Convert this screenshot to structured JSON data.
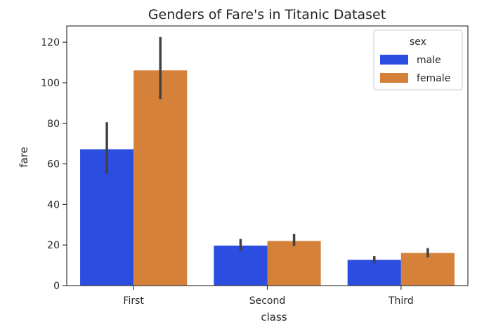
{
  "chart_data": {
    "type": "bar",
    "title": "Genders of Fare's in Titanic Dataset",
    "xlabel": "class",
    "ylabel": "fare",
    "categories": [
      "First",
      "Second",
      "Third"
    ],
    "yticks": [
      0,
      20,
      40,
      60,
      80,
      100,
      120
    ],
    "ylim": [
      0,
      128
    ],
    "grid": false,
    "legend": {
      "title": "sex",
      "placement": "top-right"
    },
    "series": [
      {
        "name": "male",
        "color": "#2B4EE0",
        "values": [
          67.2,
          19.7,
          12.7
        ],
        "ci_low": [
          55,
          17,
          11
        ],
        "ci_high": [
          80.5,
          23,
          14.5
        ]
      },
      {
        "name": "female",
        "color": "#D5813A",
        "values": [
          106.1,
          22.0,
          16.1
        ],
        "ci_low": [
          92,
          19.5,
          14
        ],
        "ci_high": [
          122.5,
          25.5,
          18.5
        ]
      }
    ]
  }
}
